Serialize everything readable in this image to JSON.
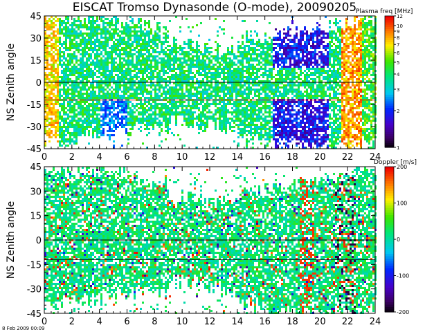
{
  "title": "EISCAT Tromso Dynasonde (O-mode),  20090205",
  "timestamp": "8 Feb 2009 00:09",
  "chart_data": [
    {
      "type": "heatmap",
      "name": "plasma-frequency",
      "title": "EISCAT Tromso Dynasonde (O-mode),  20090205",
      "xlabel": "",
      "ylabel": "NS Zenith angle",
      "xlim": [
        0,
        24
      ],
      "ylim": [
        -45,
        45
      ],
      "x_ticks": [
        0,
        2,
        4,
        6,
        8,
        10,
        12,
        14,
        16,
        18,
        20,
        22,
        24
      ],
      "y_ticks": [
        -45,
        -30,
        -15,
        0,
        15,
        30,
        45
      ],
      "hlines": [
        {
          "y": 0,
          "color": "#000000"
        },
        {
          "y": -12,
          "color": "#e01010"
        }
      ],
      "colorbar": {
        "label": "Plasma freq [MHz]",
        "scale": "log",
        "range": [
          1,
          12
        ],
        "ticks": [
          1,
          2,
          3,
          4,
          5,
          6,
          7,
          8,
          9,
          10,
          12
        ]
      }
    },
    {
      "type": "heatmap",
      "name": "doppler",
      "title": "",
      "xlabel": "",
      "ylabel": "NS Zenith angle",
      "xlim": [
        0,
        24
      ],
      "ylim": [
        -45,
        45
      ],
      "x_ticks": [
        0,
        2,
        4,
        6,
        8,
        10,
        12,
        14,
        16,
        18,
        20,
        22,
        24
      ],
      "y_ticks": [
        -45,
        -30,
        -15,
        0,
        15,
        30,
        45
      ],
      "hlines": [
        {
          "y": 0,
          "color": "#000000"
        },
        {
          "y": -12,
          "color": "#000000"
        }
      ],
      "colorbar": {
        "label": "Doppler [m/s]",
        "scale": "linear",
        "range": [
          -200,
          200
        ],
        "ticks": [
          -200,
          -100,
          0,
          100,
          200
        ]
      }
    }
  ]
}
